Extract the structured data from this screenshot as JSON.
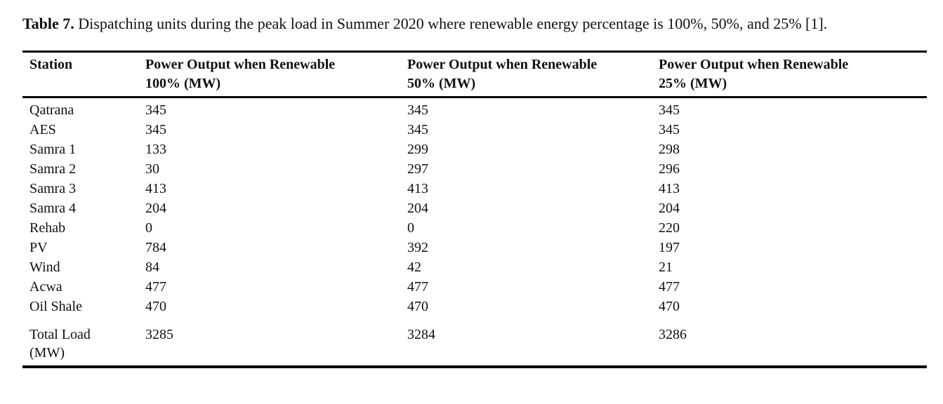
{
  "caption": {
    "label": "Table 7.",
    "text": " Dispatching units during the peak load in Summer 2020 where renewable energy percentage is 100%, 50%, and 25% [1]."
  },
  "table": {
    "columns": [
      {
        "line1": "Station",
        "line2": ""
      },
      {
        "line1": "Power Output when Renewable",
        "line2": "100% (MW)"
      },
      {
        "line1": "Power Output when Renewable",
        "line2": "50% (MW)"
      },
      {
        "line1": "Power Output when Renewable",
        "line2": "25% (MW)"
      }
    ],
    "rows": [
      {
        "station": "Qatrana",
        "p100": "345",
        "p50": "345",
        "p25": "345"
      },
      {
        "station": "AES",
        "p100": "345",
        "p50": "345",
        "p25": "345"
      },
      {
        "station": "Samra 1",
        "p100": "133",
        "p50": "299",
        "p25": "298"
      },
      {
        "station": "Samra 2",
        "p100": "30",
        "p50": "297",
        "p25": "296"
      },
      {
        "station": "Samra 3",
        "p100": "413",
        "p50": "413",
        "p25": "413"
      },
      {
        "station": "Samra 4",
        "p100": "204",
        "p50": "204",
        "p25": "204"
      },
      {
        "station": "Rehab",
        "p100": "0",
        "p50": "0",
        "p25": "220"
      },
      {
        "station": "PV",
        "p100": "784",
        "p50": "392",
        "p25": "197"
      },
      {
        "station": "Wind",
        "p100": "84",
        "p50": "42",
        "p25": "21"
      },
      {
        "station": "Acwa",
        "p100": "477",
        "p50": "477",
        "p25": "477"
      },
      {
        "station": "Oil Shale",
        "p100": "470",
        "p50": "470",
        "p25": "470"
      }
    ],
    "total": {
      "station_line1": "Total Load",
      "station_line2": "(MW)",
      "p100": "3285",
      "p50": "3284",
      "p25": "3286"
    }
  }
}
